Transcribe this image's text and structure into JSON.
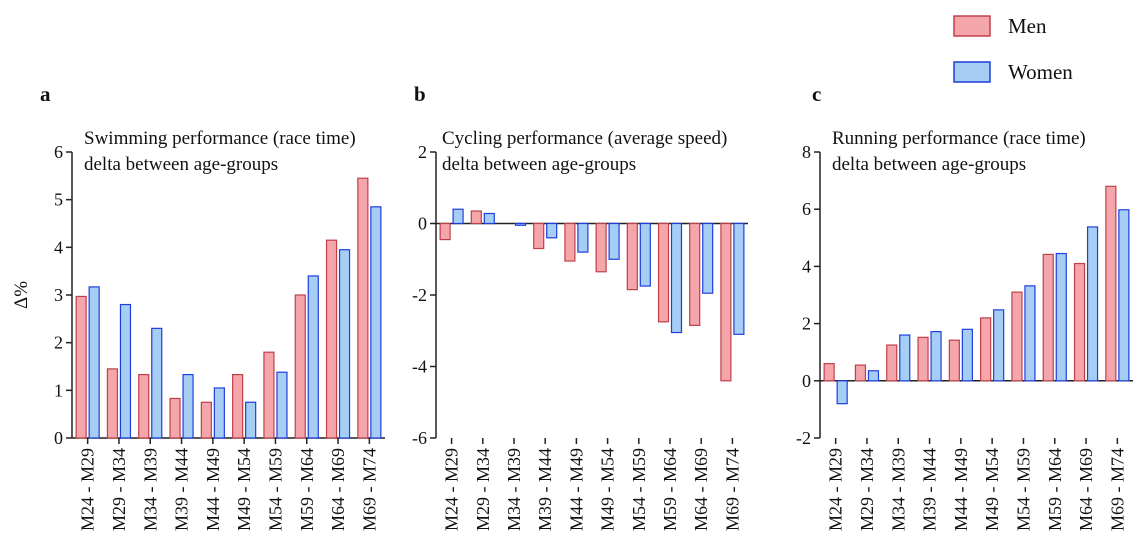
{
  "chart_data": [
    {
      "type": "bar",
      "panel": "a",
      "title": [
        "Swimming performance (race time)",
        "delta between age-groups"
      ],
      "ylabel": "Δ%",
      "categories": [
        "M24 - M29",
        "M29 - M34",
        "M34 - M39",
        "M39 - M44",
        "M44 - M49",
        "M49 - M54",
        "M54 - M59",
        "M59 - M64",
        "M64 - M69",
        "M69 - M74"
      ],
      "series": [
        {
          "name": "Men",
          "color": "#f4a6aa",
          "edge": "#c0404a",
          "values": [
            2.97,
            1.45,
            1.33,
            0.83,
            0.75,
            1.33,
            1.8,
            3.0,
            4.15,
            5.45
          ]
        },
        {
          "name": "Women",
          "color": "#a6cdf4",
          "edge": "#1f3fdc",
          "values": [
            3.17,
            2.8,
            2.3,
            1.33,
            1.05,
            0.75,
            1.38,
            3.4,
            3.95,
            4.85
          ]
        }
      ],
      "ylim": [
        0,
        6
      ],
      "yticks": [
        0,
        1,
        2,
        3,
        4,
        5,
        6
      ]
    },
    {
      "type": "bar",
      "panel": "b",
      "title": [
        "Cycling performance (average speed)",
        "delta between age-groups"
      ],
      "categories": [
        "M24 - M29",
        "M29 - M34",
        "M34 - M39",
        "M39 - M44",
        "M44 - M49",
        "M49 - M54",
        "M54 - M59",
        "M59 - M64",
        "M64 - M69",
        "M69 - M74"
      ],
      "series": [
        {
          "name": "Men",
          "color": "#f4a6aa",
          "edge": "#c0404a",
          "values": [
            -0.45,
            0.35,
            0,
            -0.7,
            -1.05,
            -1.35,
            -1.85,
            -2.75,
            -2.85,
            -4.4
          ]
        },
        {
          "name": "Women",
          "color": "#a6cdf4",
          "edge": "#1f3fdc",
          "values": [
            0.4,
            0.28,
            -0.05,
            -0.4,
            -0.8,
            -1.0,
            -1.75,
            -3.05,
            -1.95,
            -3.1
          ]
        }
      ],
      "ylim": [
        -6,
        2
      ],
      "yticks": [
        -6,
        -4,
        -2,
        0,
        2
      ]
    },
    {
      "type": "bar",
      "panel": "c",
      "title": [
        "Running performance (race time)",
        "delta between age-groups"
      ],
      "categories": [
        "M24 - M29",
        "M29 - M34",
        "M34 - M39",
        "M39 - M44",
        "M44 - M49",
        "M49 - M54",
        "M54 - M59",
        "M59 - M64",
        "M64 - M69",
        "M69 - M74"
      ],
      "series": [
        {
          "name": "Men",
          "color": "#f4a6aa",
          "edge": "#c0404a",
          "values": [
            0.6,
            0.55,
            1.25,
            1.52,
            1.42,
            2.2,
            3.1,
            4.42,
            4.1,
            6.8
          ]
        },
        {
          "name": "Women",
          "color": "#a6cdf4",
          "edge": "#1f3fdc",
          "values": [
            -0.8,
            0.35,
            1.6,
            1.72,
            1.8,
            2.48,
            3.32,
            4.45,
            5.38,
            5.98
          ]
        }
      ],
      "ylim": [
        -2,
        8
      ],
      "yticks": [
        -2,
        0,
        2,
        4,
        6,
        8
      ]
    }
  ]
}
